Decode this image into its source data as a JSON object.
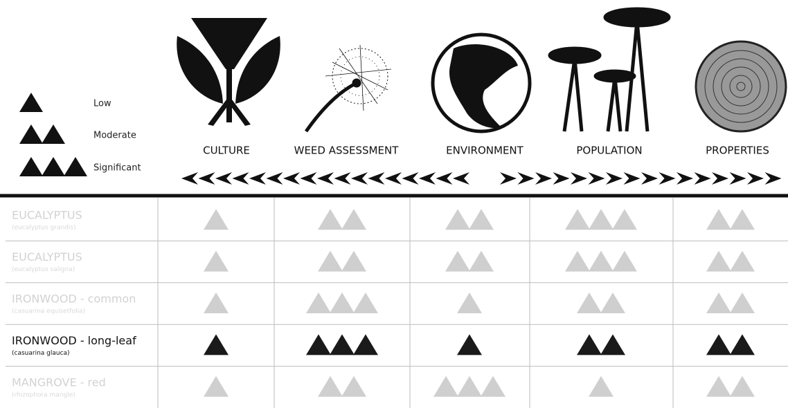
{
  "legend": [
    {
      "label": "Low",
      "count": 1
    },
    {
      "label": "Moderate",
      "count": 2
    },
    {
      "label": "Significant",
      "count": 3
    }
  ],
  "columns": [
    "CULTURE",
    "WEED ASSESSMENT",
    "ENVIRONMENT",
    "POPULATION",
    "PROPERTIES"
  ],
  "rows": [
    {
      "name": "EUCALYPTUS",
      "scientific_name": "(eucalyptus grandis)",
      "ratings": [
        1,
        2,
        2,
        3,
        2
      ],
      "highlighted": false
    },
    {
      "name": "EUCALYPTUS",
      "scientific_name": "(eucalyptus saligna)",
      "ratings": [
        1,
        2,
        2,
        3,
        2
      ],
      "highlighted": false
    },
    {
      "name": "IRONWOOD - common",
      "scientific_name": "(casuarina equisetfolia)",
      "ratings": [
        1,
        3,
        1,
        2,
        2
      ],
      "highlighted": false
    },
    {
      "name": "IRONWOOD - long-leaf",
      "scientific_name": "(casuarina glauca)",
      "ratings": [
        1,
        3,
        1,
        2,
        2
      ],
      "highlighted": true
    },
    {
      "name": "MANGROVE - red",
      "scientific_name": "(rhizophora mangle)",
      "ratings": [
        1,
        2,
        3,
        1,
        2
      ],
      "highlighted": false
    }
  ]
}
